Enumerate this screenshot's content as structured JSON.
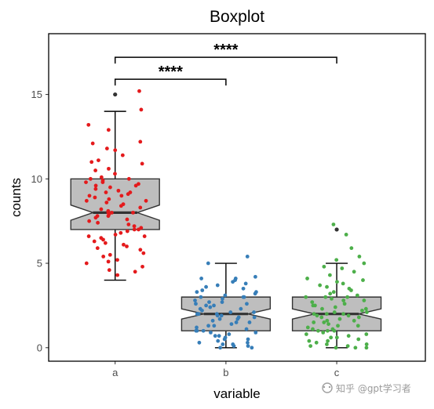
{
  "chart_data": {
    "type": "boxplot",
    "title": "Boxplot",
    "xlabel": "variable",
    "ylabel": "counts",
    "ylim": [
      -0.8,
      18.6
    ],
    "yticks": [
      0,
      5,
      10,
      15
    ],
    "grid": false,
    "legend": "none",
    "box_fill": "#bebebe",
    "categories": [
      "a",
      "b",
      "c"
    ],
    "boxes": [
      {
        "category": "a",
        "min": 4,
        "q1": 7,
        "median": 8,
        "q3": 10,
        "max": 14,
        "notch": [
          7.55,
          8.45
        ],
        "outliers": [
          15
        ],
        "point_color": "#e41a1c"
      },
      {
        "category": "b",
        "min": 0,
        "q1": 1,
        "median": 2,
        "q3": 3,
        "max": 5,
        "notch": [
          1.7,
          2.3
        ],
        "outliers": [],
        "point_color": "#377eb8"
      },
      {
        "category": "c",
        "min": 0,
        "q1": 1,
        "median": 2,
        "q3": 3,
        "max": 5,
        "notch": [
          1.7,
          2.3
        ],
        "outliers": [
          7
        ],
        "point_color": "#4daf4a"
      }
    ],
    "points": [
      {
        "category": "a",
        "values": [
          15.2,
          14.1,
          13.2,
          12.9,
          12.2,
          12.1,
          11.8,
          11.7,
          11.4,
          11.1,
          11.0,
          10.9,
          10.6,
          10.5,
          10.3,
          10.1,
          10.0,
          10.0,
          9.9,
          9.8,
          9.8,
          9.7,
          9.6,
          9.6,
          9.5,
          9.4,
          9.3,
          9.2,
          9.1,
          9.0,
          9.0,
          8.9,
          8.8,
          8.7,
          8.7,
          8.6,
          8.5,
          8.4,
          8.3,
          8.2,
          8.1,
          8.0,
          8.0,
          8.0,
          7.9,
          7.8,
          7.8,
          7.7,
          7.6,
          7.5,
          7.4,
          7.3,
          7.2,
          7.1,
          7.0,
          7.0,
          6.9,
          6.8,
          6.7,
          6.6,
          6.5,
          6.4,
          6.3,
          6.2,
          6.1,
          6.0,
          5.9,
          5.8,
          5.6,
          5.4,
          5.2,
          5.1,
          5.0,
          4.8,
          4.6,
          4.5,
          4.3,
          5.5,
          6.6,
          9.2
        ]
      },
      {
        "category": "b",
        "values": [
          5.4,
          5.0,
          4.2,
          4.1,
          4.1,
          4.0,
          3.9,
          3.8,
          3.6,
          3.5,
          3.4,
          3.3,
          3.3,
          3.2,
          3.1,
          3.0,
          3.0,
          3.0,
          2.9,
          2.8,
          2.7,
          2.7,
          2.6,
          2.5,
          2.5,
          2.4,
          2.3,
          2.3,
          2.2,
          2.1,
          2.1,
          2.0,
          2.0,
          2.0,
          1.9,
          1.9,
          1.8,
          1.8,
          1.7,
          1.7,
          1.6,
          1.5,
          1.5,
          1.4,
          1.3,
          1.3,
          1.2,
          1.1,
          1.0,
          1.0,
          1.0,
          0.9,
          0.9,
          0.8,
          0.7,
          0.7,
          0.6,
          0.5,
          0.5,
          0.4,
          0.3,
          0.3,
          0.2,
          0.2,
          0.1,
          0.1,
          0.0,
          0.0,
          2.6,
          3.7
        ]
      },
      {
        "category": "c",
        "values": [
          7.3,
          6.7,
          5.9,
          5.4,
          5.2,
          5.0,
          4.7,
          4.5,
          4.3,
          4.1,
          4.0,
          3.9,
          3.8,
          3.6,
          3.5,
          3.4,
          3.3,
          3.2,
          3.1,
          3.0,
          3.0,
          3.0,
          2.9,
          2.8,
          2.8,
          2.7,
          2.6,
          2.5,
          2.5,
          2.4,
          2.3,
          2.3,
          2.2,
          2.1,
          2.1,
          2.0,
          2.0,
          2.0,
          1.9,
          1.9,
          1.8,
          1.8,
          1.7,
          1.6,
          1.6,
          1.5,
          1.5,
          1.4,
          1.3,
          1.3,
          1.2,
          1.1,
          1.1,
          1.0,
          1.0,
          1.0,
          0.9,
          0.8,
          0.8,
          0.7,
          0.6,
          0.6,
          0.5,
          0.4,
          0.4,
          0.3,
          0.2,
          0.2,
          0.1,
          0.1,
          0.0,
          0.0,
          0.0,
          3.7,
          4.8
        ]
      }
    ],
    "annotations": [
      {
        "from": "a",
        "to": "b",
        "y": 15.9,
        "label": "****"
      },
      {
        "from": "a",
        "to": "c",
        "y": 17.2,
        "label": "****"
      }
    ]
  },
  "watermark": {
    "text": "知乎 @gpt学习者",
    "icon": "wechat-channel-icon"
  }
}
